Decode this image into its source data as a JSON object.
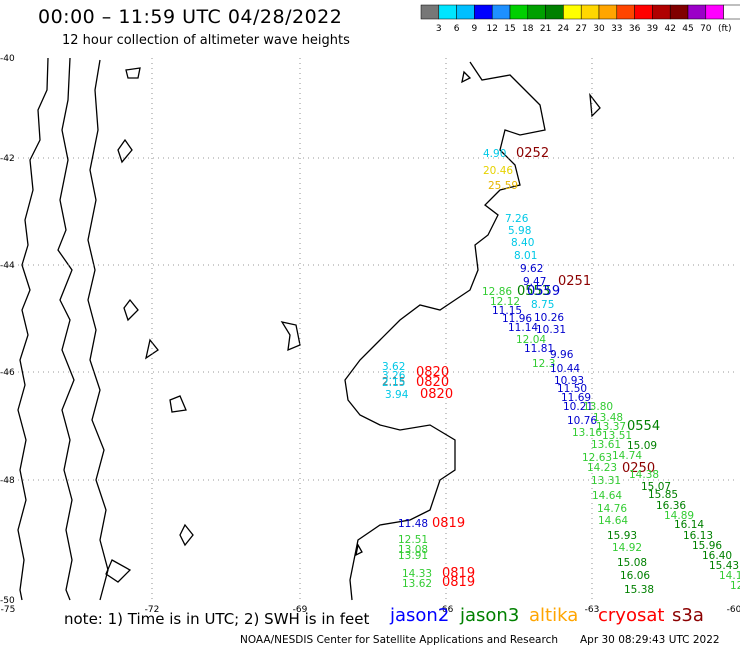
{
  "header": {
    "title": "00:00 – 11:59 UTC 04/28/2022",
    "subtitle": "12 hour collection of altimeter wave heights"
  },
  "colorbar": {
    "labels": [
      "3",
      "6",
      "9",
      "12",
      "15",
      "18",
      "21",
      "24",
      "27",
      "30",
      "33",
      "36",
      "39",
      "42",
      "45",
      "70"
    ],
    "unit": "(ft)",
    "colors": [
      "#777777",
      "#00e5ff",
      "#00bfff",
      "#0000ff",
      "#1e90ff",
      "#00d000",
      "#00a000",
      "#008000",
      "#ffff00",
      "#ffd700",
      "#ffa500",
      "#ff4500",
      "#ff0000",
      "#b00000",
      "#800000",
      "#9b00c8",
      "#ff00ff",
      "#ffffff",
      "#000000"
    ]
  },
  "axes": {
    "lon_labels": [
      "-75",
      "-72",
      "-69",
      "-66",
      "-63",
      "-60"
    ],
    "lat_labels": [
      "-40",
      "-42",
      "-44",
      "-46",
      "-48",
      "-50"
    ]
  },
  "map_labels": [
    {
      "t": "4.90",
      "c": "#00c8e6"
    },
    {
      "t": "0252",
      "c": "#8b0000"
    },
    {
      "t": "20.46",
      "c": "#e6d200"
    },
    {
      "t": "25.59",
      "c": "#e6b400"
    },
    {
      "t": "7.26",
      "c": "#00c8e6"
    },
    {
      "t": "5.98",
      "c": "#00c8e6"
    },
    {
      "t": "8.40",
      "c": "#00c8e6"
    },
    {
      "t": "8.01",
      "c": "#00c8e6"
    },
    {
      "t": "9.62",
      "c": "#0000cd"
    },
    {
      "t": "9.47",
      "c": "#0000cd"
    },
    {
      "t": "0251",
      "c": "#8b0000"
    },
    {
      "t": "12.86",
      "c": "#33cc33"
    },
    {
      "t": "0553",
      "c": "#008000"
    },
    {
      "t": "0559",
      "c": "#0000cd"
    },
    {
      "t": "12.12",
      "c": "#33cc33"
    },
    {
      "t": "8.75",
      "c": "#00c8e6"
    },
    {
      "t": "11.15",
      "c": "#0000cd"
    },
    {
      "t": "11.96",
      "c": "#0000cd"
    },
    {
      "t": "10.26",
      "c": "#0000cd"
    },
    {
      "t": "11.14",
      "c": "#0000cd"
    },
    {
      "t": "10.31",
      "c": "#0000cd"
    },
    {
      "t": "12.04",
      "c": "#33cc33"
    },
    {
      "t": "11.81",
      "c": "#0000cd"
    },
    {
      "t": "9.96",
      "c": "#0000cd"
    },
    {
      "t": "12.3",
      "c": "#33cc33"
    },
    {
      "t": "10.44",
      "c": "#0000cd"
    },
    {
      "t": "10.93",
      "c": "#0000cd"
    },
    {
      "t": "11.50",
      "c": "#0000cd"
    },
    {
      "t": "11.69",
      "c": "#0000cd"
    },
    {
      "t": "10.21",
      "c": "#0000cd"
    },
    {
      "t": "13.80",
      "c": "#33cc33"
    },
    {
      "t": "10.76",
      "c": "#0000cd"
    },
    {
      "t": "13.48",
      "c": "#33cc33"
    },
    {
      "t": "13.37",
      "c": "#33cc33"
    },
    {
      "t": "0554",
      "c": "#008000"
    },
    {
      "t": "13.16",
      "c": "#33cc33"
    },
    {
      "t": "13.51",
      "c": "#33cc33"
    },
    {
      "t": "13.61",
      "c": "#33cc33"
    },
    {
      "t": "15.09",
      "c": "#008000"
    },
    {
      "t": "12.63",
      "c": "#33cc33"
    },
    {
      "t": "14.74",
      "c": "#33cc33"
    },
    {
      "t": "14.23",
      "c": "#33cc33"
    },
    {
      "t": "0250",
      "c": "#8b0000"
    },
    {
      "t": "14.38",
      "c": "#33cc33"
    },
    {
      "t": "13.31",
      "c": "#33cc33"
    },
    {
      "t": "15.07",
      "c": "#008000"
    },
    {
      "t": "14.64",
      "c": "#33cc33"
    },
    {
      "t": "15.85",
      "c": "#008000"
    },
    {
      "t": "14.76",
      "c": "#33cc33"
    },
    {
      "t": "16.36",
      "c": "#008000"
    },
    {
      "t": "14.64",
      "c": "#33cc33"
    },
    {
      "t": "14.89",
      "c": "#33cc33"
    },
    {
      "t": "15.93",
      "c": "#008000"
    },
    {
      "t": "16.14",
      "c": "#008000"
    },
    {
      "t": "14.92",
      "c": "#33cc33"
    },
    {
      "t": "16.13",
      "c": "#008000"
    },
    {
      "t": "15.96",
      "c": "#008000"
    },
    {
      "t": "15.08",
      "c": "#008000"
    },
    {
      "t": "16.40",
      "c": "#008000"
    },
    {
      "t": "16.06",
      "c": "#008000"
    },
    {
      "t": "15.43",
      "c": "#008000"
    },
    {
      "t": "15.38",
      "c": "#008000"
    },
    {
      "t": "14.1",
      "c": "#33cc33"
    },
    {
      "t": "12",
      "c": "#33cc33"
    },
    {
      "t": "3.62",
      "c": "#00c8e6"
    },
    {
      "t": "3.26",
      "c": "#00c8e6"
    },
    {
      "t": "2.15",
      "c": "#777777"
    },
    {
      "t": "2.15",
      "c": "#00c8e6"
    },
    {
      "t": "0820",
      "c": "#ff0000"
    },
    {
      "t": "0820",
      "c": "#ff0000"
    },
    {
      "t": "3.94",
      "c": "#00c8e6"
    },
    {
      "t": "0820",
      "c": "#ff0000"
    },
    {
      "t": "11.48",
      "c": "#0000cd"
    },
    {
      "t": "0819",
      "c": "#ff0000"
    },
    {
      "t": "12.51",
      "c": "#33cc33"
    },
    {
      "t": "13.08",
      "c": "#33cc33"
    },
    {
      "t": "13.91",
      "c": "#33cc33"
    },
    {
      "t": "14.33",
      "c": "#33cc33"
    },
    {
      "t": "0819",
      "c": "#ff0000"
    },
    {
      "t": "13.62",
      "c": "#33cc33"
    },
    {
      "t": "0819",
      "c": "#ff0000"
    }
  ],
  "footer": {
    "note": "note:  1) Time is in UTC; 2) SWH is in feet",
    "satellites": [
      {
        "name": "jason2",
        "color": "#0000ff"
      },
      {
        "name": "jason3",
        "color": "#008000"
      },
      {
        "name": "altika",
        "color": "#ffa500"
      },
      {
        "name": "cryosat",
        "color": "#ff0000"
      },
      {
        "name": "s3a",
        "color": "#8b0000"
      }
    ],
    "credit": "NOAA/NESDIS Center for Satellite Applications and Research",
    "generated": "Apr 30 08:29:43 UTC 2022"
  }
}
